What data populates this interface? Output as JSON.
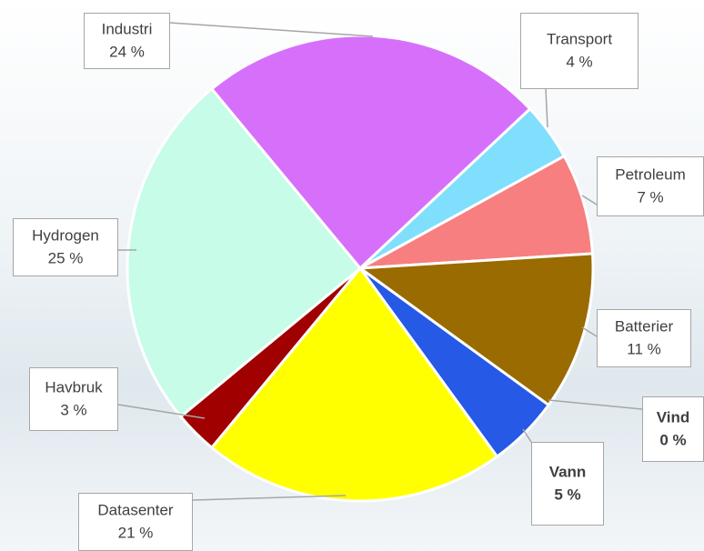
{
  "chart_data": {
    "type": "pie",
    "categories": [
      "Transport",
      "Petroleum",
      "Batterier",
      "Vind",
      "Vann",
      "Datasenter",
      "Havbruk",
      "Hydrogen",
      "Industri"
    ],
    "values": [
      4,
      7,
      11,
      0,
      5,
      21,
      3,
      25,
      24
    ],
    "value_labels": [
      "4 %",
      "7 %",
      "11 %",
      "0 %",
      "5 %",
      "21 %",
      "3 %",
      "25 %",
      "24 %"
    ],
    "colors": [
      "#80dffc",
      "#f77f7f",
      "#996b00",
      "#339933",
      "#2559e6",
      "#ffff00",
      "#a00000",
      "#c6fce8",
      "#d670fb"
    ]
  }
}
